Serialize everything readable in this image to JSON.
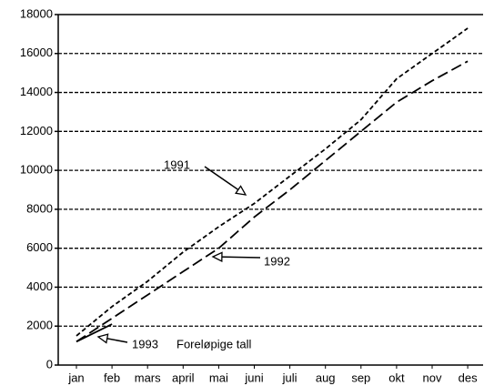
{
  "chart_data": {
    "type": "line",
    "categories": [
      "jan",
      "feb",
      "mars",
      "april",
      "mai",
      "juni",
      "juli",
      "aug",
      "sep",
      "okt",
      "nov",
      "des"
    ],
    "series": [
      {
        "name": "1991",
        "color": "#000000",
        "values": [
          1500,
          3000,
          4300,
          5800,
          7100,
          8300,
          9700,
          11100,
          12600,
          14700,
          16000,
          17300
        ]
      },
      {
        "name": "1992",
        "color": "#000000",
        "values": [
          1200,
          2400,
          3600,
          4800,
          6000,
          7600,
          9000,
          10500,
          12000,
          13500,
          14600,
          15600
        ]
      },
      {
        "name": "1993",
        "color": "#000000",
        "values": [
          1200,
          2100,
          null,
          null,
          null,
          null,
          null,
          null,
          null,
          null,
          null,
          null
        ]
      }
    ],
    "annotation": "Foreløpige tall",
    "ylim": [
      0,
      18000
    ],
    "yticks": [
      0,
      2000,
      4000,
      6000,
      8000,
      10000,
      12000,
      14000,
      16000,
      18000
    ],
    "grid": true
  }
}
